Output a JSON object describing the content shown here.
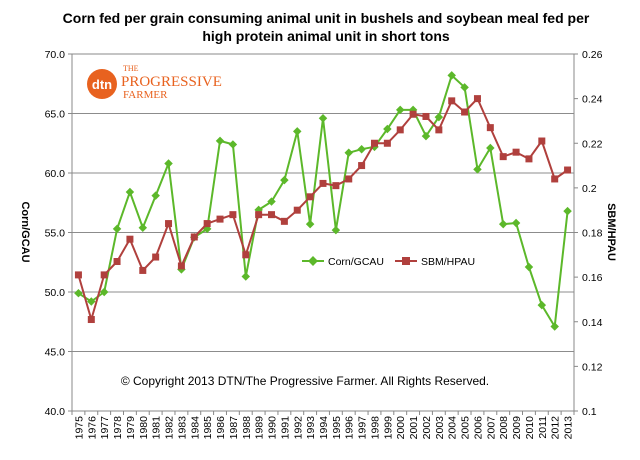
{
  "chart_data": {
    "type": "line",
    "title": "Corn fed per grain consuming animal unit in bushels and soybean meal fed per high protein animal unit in short tons",
    "title_lines": [
      "Corn fed per grain consuming animal unit in bushels and soybean meal fed per",
      "high protein animal unit in short tons"
    ],
    "ylabel": "Corn/GCAU",
    "y2label": "SBM/HPAU",
    "ylim": [
      40,
      70
    ],
    "y_ticks": [
      "40.0",
      "45.0",
      "50.0",
      "55.0",
      "60.0",
      "65.0",
      "70.0"
    ],
    "y2lim": [
      0.1,
      0.26
    ],
    "y2_ticks": [
      "0.1",
      "0.12",
      "0.14",
      "0.16",
      "0.18",
      "0.2",
      "0.22",
      "0.24",
      "0.26"
    ],
    "grid": "horizontal",
    "legend_position": "center-right",
    "x": [
      "1975",
      "1976",
      "1977",
      "1978",
      "1979",
      "1980",
      "1981",
      "1982",
      "1983",
      "1984",
      "1985",
      "1986",
      "1987",
      "1988",
      "1989",
      "1990",
      "1991",
      "1992",
      "1993",
      "1994",
      "1995",
      "1996",
      "1997",
      "1998",
      "1999",
      "2000",
      "2001",
      "2002",
      "2003",
      "2004",
      "2005",
      "2006",
      "2007",
      "2008",
      "2009",
      "2010",
      "2011",
      "2012",
      "2013"
    ],
    "series": [
      {
        "name": "Corn/GCAU",
        "axis": "left",
        "color": "#5cb82a",
        "marker": "diamond",
        "values": [
          49.9,
          49.2,
          50.0,
          55.3,
          58.4,
          55.4,
          58.1,
          60.8,
          51.9,
          54.6,
          55.3,
          62.7,
          62.4,
          51.3,
          56.9,
          57.6,
          59.4,
          63.5,
          55.7,
          64.6,
          55.2,
          61.7,
          62.0,
          62.2,
          63.7,
          65.3,
          65.3,
          63.1,
          64.7,
          68.2,
          67.2,
          60.3,
          62.1,
          55.7,
          55.8,
          52.1,
          48.9,
          47.1,
          56.8
        ]
      },
      {
        "name": "SBM/HPAU",
        "axis": "right",
        "color": "#b0403d",
        "marker": "square",
        "values": [
          0.161,
          0.141,
          0.161,
          0.167,
          0.177,
          0.163,
          0.169,
          0.184,
          0.165,
          0.178,
          0.184,
          0.186,
          0.188,
          0.17,
          0.188,
          0.188,
          0.185,
          0.19,
          0.196,
          0.202,
          0.201,
          0.204,
          0.21,
          0.22,
          0.22,
          0.226,
          0.233,
          0.232,
          0.226,
          0.239,
          0.234,
          0.24,
          0.227,
          0.214,
          0.216,
          0.213,
          0.221,
          0.204,
          0.208
        ]
      }
    ]
  },
  "logo": {
    "mark": "dtn",
    "line1": "THE",
    "line2": "PROGRESSIVE",
    "line3": "FARMER",
    "color": "#e8621f"
  },
  "copyright": "© Copyright 2013 DTN/The Progressive Farmer. All Rights Reserved."
}
